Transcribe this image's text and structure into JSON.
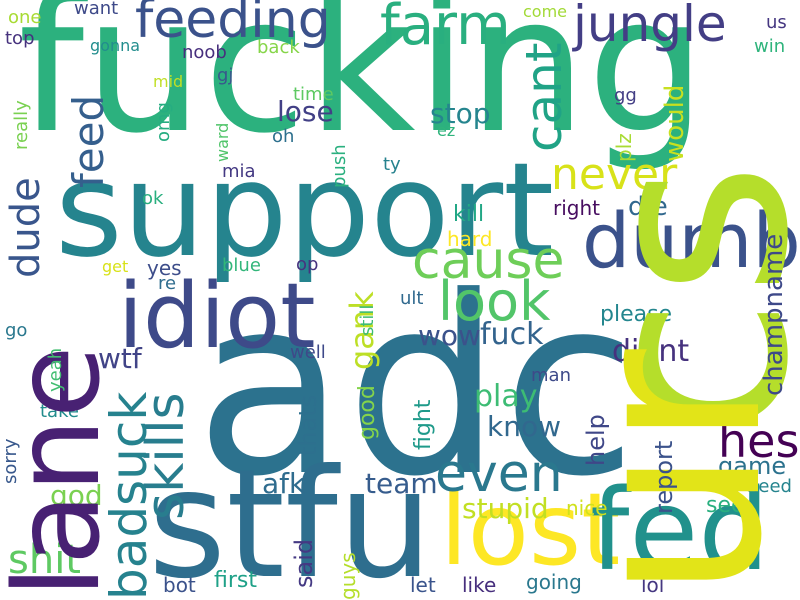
{
  "words": [
    {
      "text": "fucking",
      "color": "#2cb17e"
    },
    {
      "text": "adc",
      "color": "#2c728e"
    },
    {
      "text": "cs",
      "color": "#b5de2b"
    },
    {
      "text": "ur",
      "color": "#e2e418"
    },
    {
      "text": "support",
      "color": "#25848e"
    },
    {
      "text": "stfu",
      "color": "#2e6e8e"
    },
    {
      "text": "lane",
      "color": "#482173"
    },
    {
      "text": "lost",
      "color": "#fde725"
    },
    {
      "text": "fed",
      "color": "#21918c"
    },
    {
      "text": "idiot",
      "color": "#3e4a89"
    },
    {
      "text": "dumb",
      "color": "#3b528b"
    },
    {
      "text": "feeding",
      "color": "#3b528b"
    },
    {
      "text": "jungle",
      "color": "#433e85"
    },
    {
      "text": "farm",
      "color": "#29af7f"
    },
    {
      "text": "cant",
      "color": "#20a386"
    },
    {
      "text": "cause",
      "color": "#6ece58"
    },
    {
      "text": "look",
      "color": "#52c569"
    },
    {
      "text": "skills",
      "color": "#287d8e"
    },
    {
      "text": "badsuck",
      "color": "#26828e"
    },
    {
      "text": "feed",
      "color": "#355f8d"
    },
    {
      "text": "dude",
      "color": "#39568c"
    },
    {
      "text": "even",
      "color": "#2a788e"
    },
    {
      "text": "hes",
      "color": "#440154"
    },
    {
      "text": "never",
      "color": "#d8e219"
    },
    {
      "text": "shit",
      "color": "#5ec962"
    },
    {
      "text": "stupid",
      "color": "#c2df23"
    },
    {
      "text": "gank",
      "color": "#bddf26"
    },
    {
      "text": "lose",
      "color": "#424086"
    },
    {
      "text": "stop",
      "color": "#25858e"
    },
    {
      "text": "fuck",
      "color": "#33638d"
    },
    {
      "text": "wtf",
      "color": "#414487"
    },
    {
      "text": "didnt",
      "color": "#46327e"
    },
    {
      "text": "wow",
      "color": "#3b528b"
    },
    {
      "text": "know",
      "color": "#31688e"
    },
    {
      "text": "play",
      "color": "#3dbc74"
    },
    {
      "text": "team",
      "color": "#365c8d"
    },
    {
      "text": "afk",
      "color": "#2f6c8e"
    },
    {
      "text": "god",
      "color": "#7ad151"
    },
    {
      "text": "game",
      "color": "#2c728e"
    },
    {
      "text": "die",
      "color": "#31688e"
    },
    {
      "text": "would",
      "color": "#c8e020"
    },
    {
      "text": "champname",
      "color": "#3e4989"
    },
    {
      "text": "report",
      "color": "#3b528b"
    },
    {
      "text": "help",
      "color": "#3f4788"
    },
    {
      "text": "please",
      "color": "#24868e"
    },
    {
      "text": "thats",
      "color": "#2d708e"
    },
    {
      "text": "good",
      "color": "#84d44b"
    },
    {
      "text": "fight",
      "color": "#1f9a8a"
    },
    {
      "text": "said",
      "color": "#443983"
    },
    {
      "text": "first",
      "color": "#1fa188"
    },
    {
      "text": "bot",
      "color": "#3b528b"
    },
    {
      "text": "guys",
      "color": "#b5de2b"
    },
    {
      "text": "let",
      "color": "#3a548c"
    },
    {
      "text": "like",
      "color": "#472f7d"
    },
    {
      "text": "going",
      "color": "#2a788e"
    },
    {
      "text": "lol",
      "color": "#453781"
    },
    {
      "text": "need",
      "color": "#25848e"
    },
    {
      "text": "see",
      "color": "#29af7f"
    },
    {
      "text": "nice",
      "color": "#d0e11c"
    },
    {
      "text": "man",
      "color": "#3e4a89"
    },
    {
      "text": "kill",
      "color": "#22a785"
    },
    {
      "text": "hard",
      "color": "#fde725"
    },
    {
      "text": "right",
      "color": "#470d60"
    },
    {
      "text": "yes",
      "color": "#3d4d8a"
    },
    {
      "text": "blue",
      "color": "#32b67a"
    },
    {
      "text": "op",
      "color": "#46337f"
    },
    {
      "text": "re",
      "color": "#2f6c8e"
    },
    {
      "text": "get",
      "color": "#d8e219"
    },
    {
      "text": "still",
      "color": "#3dbc74"
    },
    {
      "text": "ult",
      "color": "#30698e"
    },
    {
      "text": "well",
      "color": "#3e4989"
    },
    {
      "text": "go",
      "color": "#2a788e"
    },
    {
      "text": "yeah",
      "color": "#42be71"
    },
    {
      "text": "take",
      "color": "#228c8d"
    },
    {
      "text": "sorry",
      "color": "#38588c"
    },
    {
      "text": "mia",
      "color": "#443983"
    },
    {
      "text": "ok",
      "color": "#29af7f"
    },
    {
      "text": "push",
      "color": "#2ab07f"
    },
    {
      "text": "ty",
      "color": "#26828e"
    },
    {
      "text": "oh",
      "color": "#2d708e"
    },
    {
      "text": "time",
      "color": "#5ec962"
    },
    {
      "text": "ward",
      "color": "#50c46a"
    },
    {
      "text": "omg",
      "color": "#26ad81"
    },
    {
      "text": "mid",
      "color": "#c0df25"
    },
    {
      "text": "gj",
      "color": "#38588c"
    },
    {
      "text": "noob",
      "color": "#472f7d"
    },
    {
      "text": "back",
      "color": "#86d549"
    },
    {
      "text": "gonna",
      "color": "#228d8d"
    },
    {
      "text": "want",
      "color": "#3e4a89"
    },
    {
      "text": "one",
      "color": "#a8db34"
    },
    {
      "text": "top",
      "color": "#46327e"
    },
    {
      "text": "really",
      "color": "#7ad151"
    },
    {
      "text": "come",
      "color": "#a2da37"
    },
    {
      "text": "us",
      "color": "#453781"
    },
    {
      "text": "win",
      "color": "#2fb47c"
    },
    {
      "text": "gg",
      "color": "#433e85"
    },
    {
      "text": "plz",
      "color": "#a8db34"
    },
    {
      "text": "ez",
      "color": "#2fb47c"
    }
  ]
}
